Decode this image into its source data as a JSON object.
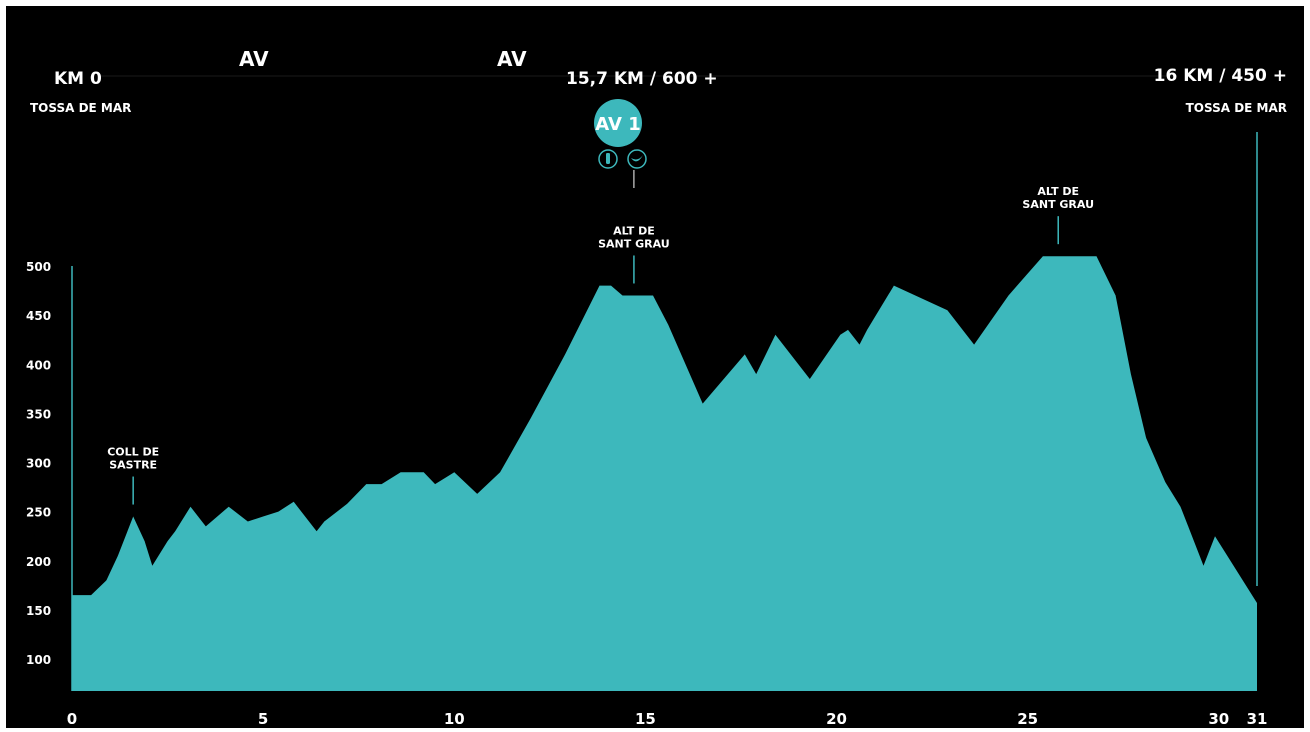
{
  "colors": {
    "background": "#000000",
    "fill": "#3db8bc",
    "text": "#ffffff",
    "rule": "#1a1a1a"
  },
  "header": {
    "start_label": "KM 0",
    "start_place": "TOSSA DE MAR",
    "av_markers": [
      "AV",
      "AV"
    ],
    "aid_station_label": "15,7 KM / 600 +",
    "finish_label": "16 KM / 450 +",
    "finish_place": "TOSSA DE MAR"
  },
  "aid_station": {
    "badge": "AV 1",
    "icons": [
      "water-bottle-icon",
      "food-icon"
    ]
  },
  "chart_data": {
    "type": "area",
    "title": "",
    "xlabel": "",
    "ylabel": "",
    "xlim": [
      0,
      31
    ],
    "ylim": [
      60,
      500
    ],
    "x_ticks": [
      0,
      5,
      10,
      15,
      20,
      25,
      30,
      31
    ],
    "y_ticks": [
      100,
      150,
      200,
      250,
      300,
      350,
      400,
      450,
      500
    ],
    "grid": false,
    "series": [
      {
        "name": "",
        "x": [
          0,
          0.5,
          0.9,
          1.2,
          1.6,
          1.9,
          2.1,
          2.5,
          2.7,
          3.1,
          3.3,
          3.5,
          4.1,
          4.6,
          5.0,
          5.4,
          5.8,
          6.4,
          6.6,
          7.2,
          7.7,
          8.1,
          8.6,
          9.2,
          9.5,
          10.0,
          10.6,
          11.2,
          12.0,
          12.9,
          13.8,
          14.1,
          14.4,
          15.2,
          15.6,
          16.5,
          17.6,
          17.9,
          18.4,
          19.3,
          20.1,
          20.3,
          20.6,
          20.8,
          21.5,
          22.9,
          23.6,
          24.5,
          25.4,
          26.1,
          26.8,
          27.3,
          27.7,
          28.1,
          28.6,
          29.0,
          29.2,
          29.6,
          29.9,
          31.0
        ],
        "y": [
          165,
          165,
          180,
          205,
          245,
          220,
          195,
          220,
          230,
          255,
          245,
          235,
          255,
          240,
          245,
          250,
          260,
          230,
          240,
          258,
          278,
          278,
          290,
          290,
          278,
          290,
          268,
          290,
          345,
          410,
          480,
          480,
          470,
          470,
          440,
          360,
          410,
          390,
          430,
          385,
          430,
          435,
          420,
          435,
          480,
          455,
          420,
          470,
          510,
          510,
          510,
          470,
          390,
          325,
          280,
          255,
          235,
          195,
          225,
          157
        ]
      }
    ],
    "annotations": [
      {
        "x": 1.6,
        "text": [
          "COLL DE",
          "SASTRE"
        ]
      },
      {
        "x": 14.7,
        "text": [
          "ALT DE",
          "SANT GRAU"
        ]
      },
      {
        "x": 25.8,
        "text": [
          "ALT DE",
          "SANT GRAU"
        ]
      }
    ]
  }
}
